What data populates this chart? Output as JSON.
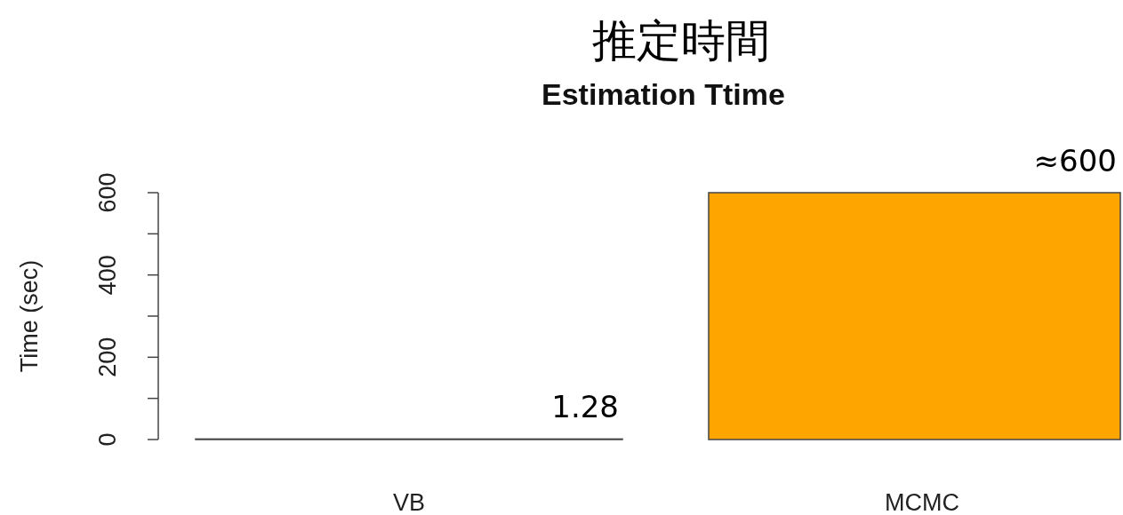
{
  "chart_data": {
    "type": "bar",
    "title": "推定時間",
    "subtitle": "Estimation Ttime",
    "ylabel": "Time (sec)",
    "categories": [
      "VB",
      "MCMC"
    ],
    "values": [
      1.28,
      600
    ],
    "colors": [
      "#ffa500",
      "#ffa500"
    ],
    "value_labels": [
      "1.28",
      "≈600"
    ],
    "ylim": [
      0,
      600
    ],
    "yticks": [
      0,
      {
        "value": 100,
        "label": null
      },
      200,
      {
        "value": 300,
        "label": null
      },
      400,
      {
        "value": 500,
        "label": null
      },
      600
    ]
  }
}
